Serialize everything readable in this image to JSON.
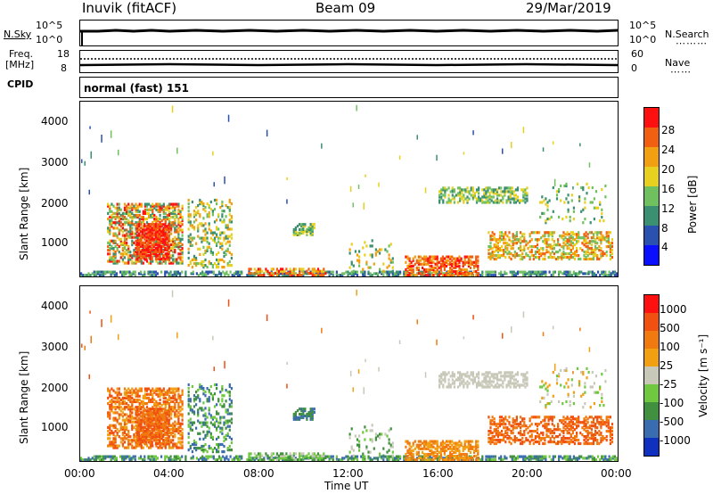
{
  "header": {
    "station": "Inuvik (fitACF)",
    "beam": "Beam 09",
    "date": "29/Mar/2019"
  },
  "noise_panel": {
    "left_label": "N.Sky",
    "right_label": "N.Search",
    "left_top_tick": "10^5",
    "left_bottom_tick": "10^0",
    "right_top_tick": "10^5",
    "right_bottom_tick": "10^0"
  },
  "freq_panel": {
    "left_label_top": "Freq.",
    "left_label_unit": "[MHz]",
    "right_label": "Nave",
    "left_top_tick": "18",
    "left_bottom_tick": "8",
    "right_top_tick": "60",
    "right_bottom_tick": "0",
    "cpid_label": "CPID",
    "cpid_value": "normal (fast) 151"
  },
  "colors": {
    "power_scale": [
      "#0a10ff",
      "#2a50b0",
      "#3a9070",
      "#70c060",
      "#e8d020",
      "#f0a010",
      "#f06010",
      "#ff1010"
    ],
    "velocity_scale": [
      "#ff1010",
      "#f05010",
      "#f07a10",
      "#f0a010",
      "#c8c8b8",
      "#70c840",
      "#409040",
      "#3a6cb0",
      "#1030c0"
    ]
  },
  "chart_data": [
    {
      "type": "heatmap",
      "name": "power",
      "ylabel": "Slant Range [km]",
      "xlabel": "",
      "ylim": [
        180,
        4500
      ],
      "xlim": [
        0,
        24
      ],
      "yticks": [
        "4000",
        "3000",
        "2000",
        "1000"
      ],
      "xticks": [],
      "colorbar_label": "Power [dB]",
      "colorbar_ticks": [
        "28",
        "24",
        "20",
        "16",
        "12",
        "8",
        "4"
      ]
    },
    {
      "type": "heatmap",
      "name": "velocity",
      "ylabel": "Slant Range [km]",
      "xlabel": "Time UT",
      "ylim": [
        180,
        4500
      ],
      "xlim": [
        0,
        24
      ],
      "yticks": [
        "4000",
        "3000",
        "2000",
        "1000"
      ],
      "xticks": [
        "00:00",
        "04:00",
        "08:00",
        "12:00",
        "16:00",
        "20:00",
        "00:00"
      ],
      "colorbar_label": "Velocity [m s⁻¹]",
      "colorbar_ticks": [
        "1000",
        "500",
        "100",
        "25",
        "-25",
        "-100",
        "-500",
        "-1000"
      ]
    }
  ]
}
